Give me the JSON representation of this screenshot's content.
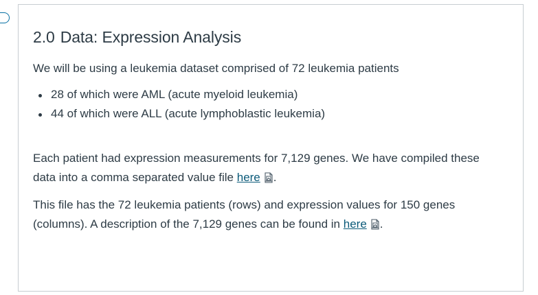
{
  "section": {
    "number": "2.0",
    "title": "Data: Expression Analysis"
  },
  "intro": "We will be using a leukemia dataset comprised of 72 leukemia patients",
  "bullets": [
    "28 of which were AML (acute myeloid leukemia)",
    "44 of which were ALL (acute lymphoblastic leukemia)"
  ],
  "paragraph1": {
    "line1": "Each patient had expression measurements for 7,129 genes. We have compiled these",
    "line2_prefix": "data into a comma separated value file ",
    "link_text": "here",
    "suffix": "."
  },
  "paragraph2": {
    "line1": "This file has the 72 leukemia patients (rows) and expression values for 150 genes",
    "line2_prefix": "(columns). A description of the 7,129 genes can be found in ",
    "link_text": "here",
    "suffix": "."
  },
  "icons": {
    "file_link": "file-preview-icon",
    "side_tab": "side-tab-icon"
  },
  "colors": {
    "text": "#2d3b45",
    "link": "#0b5a79",
    "border": "#c7cdd1",
    "accent": "#0770a3"
  }
}
